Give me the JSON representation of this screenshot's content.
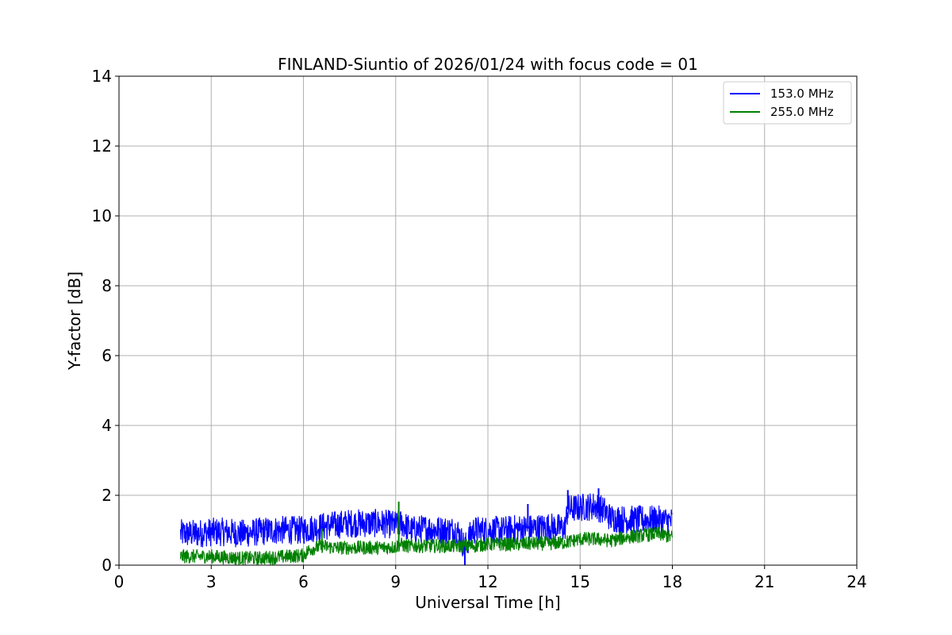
{
  "chart_data": {
    "type": "line",
    "title": "FINLAND-Siuntio of 2026/01/24 with focus code = 01",
    "xlabel": "Universal Time [h]",
    "ylabel": "Y-factor [dB]",
    "xlim": [
      0,
      24
    ],
    "ylim": [
      0,
      14
    ],
    "xticks": [
      0,
      3,
      6,
      9,
      12,
      15,
      18,
      21,
      24
    ],
    "yticks": [
      0,
      2,
      4,
      6,
      8,
      10,
      12,
      14
    ],
    "grid": true,
    "legend_position": "top-right",
    "series": [
      {
        "name": "153.0 MHz",
        "color": "#0000ff",
        "band": 0.45,
        "x": [
          2.0,
          2.5,
          3.0,
          3.5,
          4.0,
          4.5,
          5.0,
          5.5,
          6.0,
          6.2,
          6.6,
          7.0,
          7.5,
          8.0,
          8.5,
          9.0,
          9.2,
          9.5,
          10.0,
          10.5,
          11.0,
          11.25,
          11.5,
          12.0,
          12.5,
          13.0,
          13.5,
          14.0,
          14.5,
          14.6,
          15.0,
          15.5,
          15.8,
          16.0,
          16.5,
          17.0,
          17.5,
          18.0
        ],
        "y": [
          0.9,
          0.9,
          0.95,
          0.95,
          0.9,
          0.95,
          1.0,
          1.0,
          1.0,
          1.05,
          1.1,
          1.15,
          1.2,
          1.2,
          1.2,
          1.15,
          1.2,
          1.0,
          1.05,
          1.0,
          1.0,
          0.5,
          1.0,
          1.0,
          1.0,
          1.05,
          1.05,
          1.1,
          1.05,
          1.6,
          1.65,
          1.7,
          1.55,
          1.35,
          1.3,
          1.3,
          1.3,
          1.25
        ]
      },
      {
        "name": "255.0 MHz",
        "color": "#008000",
        "band": 0.22,
        "x": [
          2.0,
          2.5,
          3.0,
          3.5,
          4.0,
          4.5,
          5.0,
          5.5,
          6.0,
          6.2,
          6.6,
          7.0,
          7.5,
          8.0,
          8.5,
          9.0,
          9.15,
          9.3,
          10.0,
          10.5,
          11.0,
          11.5,
          12.0,
          12.5,
          13.0,
          13.5,
          14.0,
          14.5,
          15.0,
          15.5,
          16.0,
          16.5,
          17.0,
          17.5,
          18.0
        ],
        "y": [
          0.25,
          0.25,
          0.25,
          0.22,
          0.2,
          0.2,
          0.22,
          0.25,
          0.28,
          0.45,
          0.55,
          0.5,
          0.5,
          0.5,
          0.5,
          0.52,
          0.6,
          0.55,
          0.55,
          0.55,
          0.55,
          0.55,
          0.6,
          0.6,
          0.6,
          0.62,
          0.62,
          0.65,
          0.75,
          0.75,
          0.7,
          0.8,
          0.85,
          0.9,
          0.8
        ]
      }
    ],
    "spikes": [
      {
        "series": "255.0 MHz",
        "x": 9.1,
        "y_top": 1.82
      },
      {
        "series": "255.0 MHz",
        "x": 6.6,
        "y_top": 1.05
      },
      {
        "series": "153.0 MHz",
        "x": 11.25,
        "y_top": 0.0
      },
      {
        "series": "153.0 MHz",
        "x": 13.3,
        "y_top": 1.75
      },
      {
        "series": "153.0 MHz",
        "x": 14.6,
        "y_top": 2.15
      },
      {
        "series": "153.0 MHz",
        "x": 15.6,
        "y_top": 2.2
      }
    ]
  }
}
